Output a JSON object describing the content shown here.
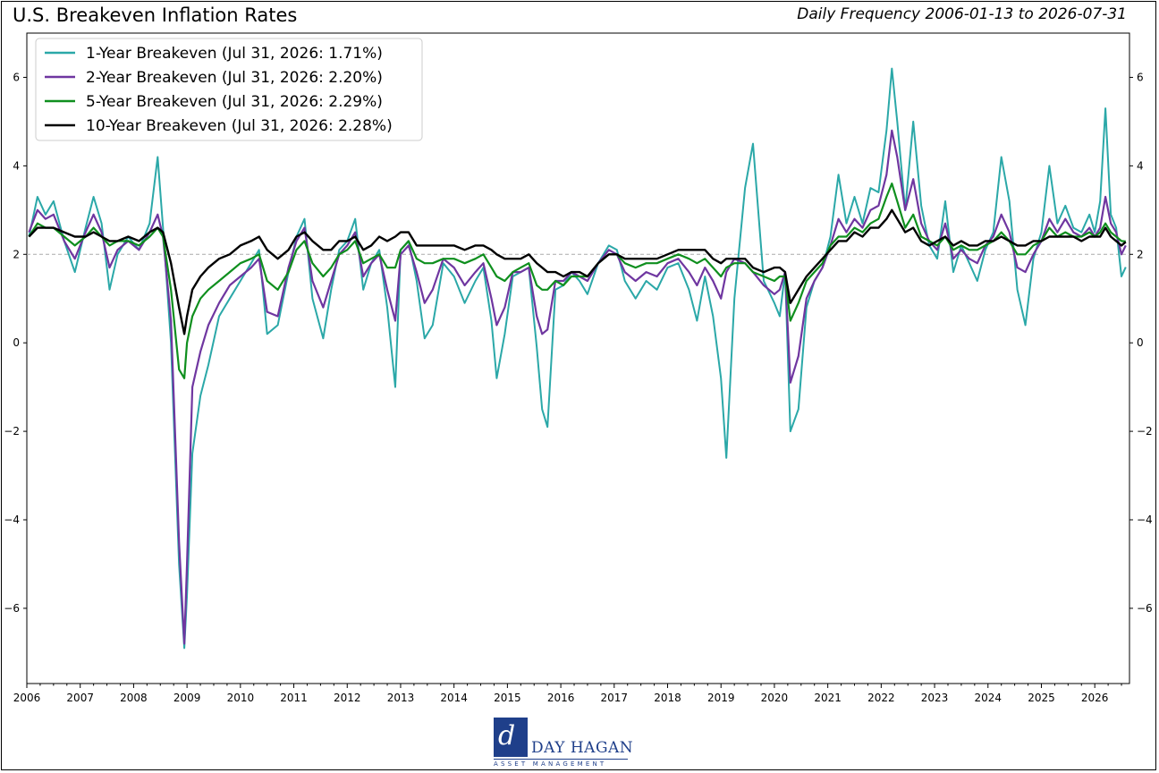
{
  "header": {
    "title": "U.S. Breakeven Inflation Rates",
    "subtitle": "Daily Frequency 2006-01-13 to 2026-07-31"
  },
  "logo": {
    "mark": "d",
    "name": "DAY HAGAN",
    "tagline": "ASSET MANAGEMENT"
  },
  "chart_data": {
    "type": "line",
    "title": "U.S. Breakeven Inflation Rates",
    "xlabel": "",
    "ylabel": "",
    "xlim": [
      2006.0,
      2026.65
    ],
    "ylim": [
      -7.7,
      7.0
    ],
    "x_ticks": [
      "2006",
      "2007",
      "2008",
      "2009",
      "2010",
      "2011",
      "2012",
      "2013",
      "2014",
      "2015",
      "2016",
      "2017",
      "2018",
      "2019",
      "2020",
      "2021",
      "2022",
      "2023",
      "2024",
      "2025",
      "2026"
    ],
    "y_ticks": [
      6,
      4,
      2,
      0,
      -2,
      -4,
      -6
    ],
    "reference_line": 2,
    "grid": false,
    "legend_position": "top-left",
    "series": [
      {
        "name": "1-Year Breakeven (Jul 31, 2026: 1.71%)",
        "color": "#2ba8a8",
        "x": [
          2006.04,
          2006.2,
          2006.35,
          2006.5,
          2006.7,
          2006.9,
          2007.1,
          2007.25,
          2007.4,
          2007.55,
          2007.7,
          2007.9,
          2008.1,
          2008.3,
          2008.45,
          2008.55,
          2008.7,
          2008.85,
          2008.95,
          2009.0,
          2009.1,
          2009.25,
          2009.4,
          2009.6,
          2009.8,
          2010.0,
          2010.2,
          2010.35,
          2010.5,
          2010.7,
          2010.9,
          2011.05,
          2011.2,
          2011.35,
          2011.55,
          2011.7,
          2011.85,
          2012.0,
          2012.15,
          2012.3,
          2012.45,
          2012.6,
          2012.75,
          2012.9,
          2013.0,
          2013.15,
          2013.3,
          2013.45,
          2013.6,
          2013.8,
          2014.0,
          2014.2,
          2014.4,
          2014.55,
          2014.7,
          2014.8,
          2014.95,
          2015.1,
          2015.25,
          2015.4,
          2015.55,
          2015.65,
          2015.75,
          2015.9,
          2016.05,
          2016.2,
          2016.35,
          2016.5,
          2016.7,
          2016.9,
          2017.05,
          2017.2,
          2017.4,
          2017.6,
          2017.8,
          2018.0,
          2018.2,
          2018.4,
          2018.55,
          2018.7,
          2018.85,
          2019.0,
          2019.1,
          2019.25,
          2019.45,
          2019.6,
          2019.8,
          2020.0,
          2020.1,
          2020.2,
          2020.3,
          2020.45,
          2020.6,
          2020.75,
          2020.9,
          2021.05,
          2021.2,
          2021.35,
          2021.5,
          2021.65,
          2021.8,
          2021.95,
          2022.1,
          2022.2,
          2022.3,
          2022.45,
          2022.6,
          2022.75,
          2022.9,
          2023.05,
          2023.2,
          2023.35,
          2023.5,
          2023.65,
          2023.8,
          2023.95,
          2024.1,
          2024.25,
          2024.4,
          2024.55,
          2024.7,
          2024.85,
          2025.0,
          2025.15,
          2025.3,
          2025.45,
          2025.6,
          2025.75,
          2025.9,
          2026.0,
          2026.1,
          2026.2,
          2026.3,
          2026.4,
          2026.5,
          2026.58
        ],
        "y": [
          2.4,
          3.3,
          2.9,
          3.2,
          2.3,
          1.6,
          2.6,
          3.3,
          2.7,
          1.2,
          2.0,
          2.4,
          2.1,
          2.7,
          4.2,
          2.6,
          0.0,
          -5.0,
          -6.9,
          -5.7,
          -2.5,
          -1.2,
          -0.5,
          0.6,
          1.0,
          1.4,
          1.8,
          2.1,
          0.2,
          0.4,
          1.6,
          2.4,
          2.8,
          1.0,
          0.1,
          1.2,
          2.1,
          2.3,
          2.8,
          1.2,
          1.8,
          2.1,
          0.8,
          -1.0,
          2.1,
          2.3,
          1.4,
          0.1,
          0.4,
          1.8,
          1.5,
          0.9,
          1.4,
          1.7,
          0.5,
          -0.8,
          0.2,
          1.5,
          1.6,
          1.7,
          -0.1,
          -1.5,
          -1.9,
          1.2,
          1.3,
          1.6,
          1.4,
          1.1,
          1.8,
          2.2,
          2.1,
          1.4,
          1.0,
          1.4,
          1.2,
          1.7,
          1.8,
          1.2,
          0.5,
          1.5,
          0.6,
          -0.8,
          -2.6,
          1.0,
          3.5,
          4.5,
          1.4,
          0.9,
          0.6,
          1.6,
          -2.0,
          -1.5,
          0.8,
          1.4,
          1.7,
          2.4,
          3.8,
          2.7,
          3.3,
          2.7,
          3.5,
          3.4,
          4.8,
          6.2,
          5.0,
          3.0,
          5.0,
          3.1,
          2.2,
          1.9,
          3.2,
          1.6,
          2.2,
          1.8,
          1.4,
          2.1,
          2.5,
          4.2,
          3.2,
          1.2,
          0.4,
          1.9,
          2.5,
          4.0,
          2.7,
          3.1,
          2.6,
          2.5,
          2.9,
          2.5,
          3.2,
          5.3,
          2.9,
          2.6,
          1.5,
          1.71
        ]
      },
      {
        "name": "2-Year Breakeven (Jul 31, 2026: 2.20%)",
        "color": "#6f36a0",
        "x": [
          2006.04,
          2006.2,
          2006.35,
          2006.5,
          2006.7,
          2006.9,
          2007.1,
          2007.25,
          2007.4,
          2007.55,
          2007.7,
          2007.9,
          2008.1,
          2008.3,
          2008.45,
          2008.55,
          2008.7,
          2008.85,
          2008.95,
          2009.0,
          2009.1,
          2009.25,
          2009.4,
          2009.6,
          2009.8,
          2010.0,
          2010.2,
          2010.35,
          2010.5,
          2010.7,
          2010.9,
          2011.05,
          2011.2,
          2011.35,
          2011.55,
          2011.7,
          2011.85,
          2012.0,
          2012.15,
          2012.3,
          2012.45,
          2012.6,
          2012.75,
          2012.9,
          2013.0,
          2013.15,
          2013.3,
          2013.45,
          2013.6,
          2013.8,
          2014.0,
          2014.2,
          2014.4,
          2014.55,
          2014.7,
          2014.8,
          2014.95,
          2015.1,
          2015.25,
          2015.4,
          2015.55,
          2015.65,
          2015.75,
          2015.9,
          2016.05,
          2016.2,
          2016.35,
          2016.5,
          2016.7,
          2016.9,
          2017.05,
          2017.2,
          2017.4,
          2017.6,
          2017.8,
          2018.0,
          2018.2,
          2018.4,
          2018.55,
          2018.7,
          2018.85,
          2019.0,
          2019.1,
          2019.25,
          2019.45,
          2019.6,
          2019.8,
          2020.0,
          2020.1,
          2020.2,
          2020.3,
          2020.45,
          2020.6,
          2020.75,
          2020.9,
          2021.05,
          2021.2,
          2021.35,
          2021.5,
          2021.65,
          2021.8,
          2021.95,
          2022.1,
          2022.2,
          2022.3,
          2022.45,
          2022.6,
          2022.75,
          2022.9,
          2023.05,
          2023.2,
          2023.35,
          2023.5,
          2023.65,
          2023.8,
          2023.95,
          2024.1,
          2024.25,
          2024.4,
          2024.55,
          2024.7,
          2024.85,
          2025.0,
          2025.15,
          2025.3,
          2025.45,
          2025.6,
          2025.75,
          2025.9,
          2026.0,
          2026.1,
          2026.2,
          2026.3,
          2026.4,
          2026.5,
          2026.58
        ],
        "y": [
          2.5,
          3.0,
          2.8,
          2.9,
          2.3,
          1.9,
          2.5,
          2.9,
          2.5,
          1.7,
          2.1,
          2.3,
          2.1,
          2.5,
          2.9,
          2.4,
          0.5,
          -4.5,
          -6.8,
          -5.0,
          -1.0,
          -0.2,
          0.4,
          0.9,
          1.3,
          1.5,
          1.7,
          1.9,
          0.7,
          0.6,
          1.7,
          2.3,
          2.6,
          1.4,
          0.8,
          1.4,
          2.0,
          2.2,
          2.5,
          1.5,
          1.8,
          2.0,
          1.2,
          0.5,
          2.0,
          2.2,
          1.6,
          0.9,
          1.2,
          1.9,
          1.7,
          1.3,
          1.6,
          1.8,
          1.0,
          0.4,
          0.8,
          1.6,
          1.6,
          1.7,
          0.6,
          0.2,
          0.3,
          1.4,
          1.4,
          1.6,
          1.5,
          1.4,
          1.8,
          2.1,
          2.0,
          1.6,
          1.4,
          1.6,
          1.5,
          1.8,
          1.9,
          1.6,
          1.3,
          1.7,
          1.4,
          1.0,
          1.6,
          1.9,
          1.8,
          1.6,
          1.3,
          1.1,
          1.2,
          1.6,
          -0.9,
          -0.3,
          1.0,
          1.4,
          1.7,
          2.2,
          2.8,
          2.5,
          2.8,
          2.6,
          3.0,
          3.1,
          3.8,
          4.8,
          4.2,
          3.0,
          3.7,
          2.7,
          2.3,
          2.1,
          2.7,
          1.9,
          2.1,
          1.9,
          1.8,
          2.2,
          2.4,
          2.9,
          2.5,
          1.7,
          1.6,
          2.0,
          2.3,
          2.8,
          2.5,
          2.8,
          2.5,
          2.4,
          2.6,
          2.4,
          2.6,
          3.3,
          2.7,
          2.5,
          2.0,
          2.2
        ]
      },
      {
        "name": "5-Year Breakeven (Jul 31, 2026: 2.29%)",
        "color": "#0f8f1e",
        "x": [
          2006.04,
          2006.2,
          2006.35,
          2006.5,
          2006.7,
          2006.9,
          2007.1,
          2007.25,
          2007.4,
          2007.55,
          2007.7,
          2007.9,
          2008.1,
          2008.3,
          2008.45,
          2008.55,
          2008.7,
          2008.85,
          2008.95,
          2009.0,
          2009.1,
          2009.25,
          2009.4,
          2009.6,
          2009.8,
          2010.0,
          2010.2,
          2010.35,
          2010.5,
          2010.7,
          2010.9,
          2011.05,
          2011.2,
          2011.35,
          2011.55,
          2011.7,
          2011.85,
          2012.0,
          2012.15,
          2012.3,
          2012.45,
          2012.6,
          2012.75,
          2012.9,
          2013.0,
          2013.15,
          2013.3,
          2013.45,
          2013.6,
          2013.8,
          2014.0,
          2014.2,
          2014.4,
          2014.55,
          2014.7,
          2014.8,
          2014.95,
          2015.1,
          2015.25,
          2015.4,
          2015.55,
          2015.65,
          2015.75,
          2015.9,
          2016.05,
          2016.2,
          2016.35,
          2016.5,
          2016.7,
          2016.9,
          2017.05,
          2017.2,
          2017.4,
          2017.6,
          2017.8,
          2018.0,
          2018.2,
          2018.4,
          2018.55,
          2018.7,
          2018.85,
          2019.0,
          2019.1,
          2019.25,
          2019.45,
          2019.6,
          2019.8,
          2020.0,
          2020.1,
          2020.2,
          2020.3,
          2020.45,
          2020.6,
          2020.75,
          2020.9,
          2021.05,
          2021.2,
          2021.35,
          2021.5,
          2021.65,
          2021.8,
          2021.95,
          2022.1,
          2022.2,
          2022.3,
          2022.45,
          2022.6,
          2022.75,
          2022.9,
          2023.05,
          2023.2,
          2023.35,
          2023.5,
          2023.65,
          2023.8,
          2023.95,
          2024.1,
          2024.25,
          2024.4,
          2024.55,
          2024.7,
          2024.85,
          2025.0,
          2025.15,
          2025.3,
          2025.45,
          2025.6,
          2025.75,
          2025.9,
          2026.0,
          2026.1,
          2026.2,
          2026.3,
          2026.4,
          2026.5,
          2026.58
        ],
        "y": [
          2.4,
          2.7,
          2.6,
          2.6,
          2.4,
          2.2,
          2.4,
          2.6,
          2.4,
          2.2,
          2.3,
          2.3,
          2.2,
          2.4,
          2.6,
          2.4,
          1.2,
          -0.6,
          -0.8,
          0.0,
          0.6,
          1.0,
          1.2,
          1.4,
          1.6,
          1.8,
          1.9,
          2.0,
          1.4,
          1.2,
          1.6,
          2.1,
          2.3,
          1.8,
          1.5,
          1.7,
          2.0,
          2.1,
          2.3,
          1.8,
          1.9,
          2.0,
          1.7,
          1.7,
          2.1,
          2.3,
          1.9,
          1.8,
          1.8,
          1.9,
          1.9,
          1.8,
          1.9,
          2.0,
          1.7,
          1.5,
          1.4,
          1.6,
          1.7,
          1.8,
          1.3,
          1.2,
          1.2,
          1.4,
          1.3,
          1.5,
          1.5,
          1.5,
          1.8,
          2.0,
          2.0,
          1.8,
          1.7,
          1.8,
          1.8,
          1.9,
          2.0,
          1.9,
          1.8,
          1.9,
          1.7,
          1.5,
          1.7,
          1.8,
          1.8,
          1.6,
          1.5,
          1.4,
          1.5,
          1.5,
          0.5,
          0.9,
          1.4,
          1.6,
          1.8,
          2.2,
          2.4,
          2.4,
          2.6,
          2.5,
          2.7,
          2.8,
          3.3,
          3.6,
          3.2,
          2.6,
          2.9,
          2.4,
          2.3,
          2.2,
          2.4,
          2.1,
          2.2,
          2.1,
          2.1,
          2.2,
          2.3,
          2.5,
          2.3,
          2.0,
          2.0,
          2.2,
          2.3,
          2.6,
          2.4,
          2.5,
          2.4,
          2.4,
          2.5,
          2.4,
          2.5,
          2.7,
          2.5,
          2.4,
          2.3,
          2.29
        ]
      },
      {
        "name": "10-Year Breakeven (Jul 31, 2026: 2.28%)",
        "color": "#000000",
        "x": [
          2006.04,
          2006.2,
          2006.35,
          2006.5,
          2006.7,
          2006.9,
          2007.1,
          2007.25,
          2007.4,
          2007.55,
          2007.7,
          2007.9,
          2008.1,
          2008.3,
          2008.45,
          2008.55,
          2008.7,
          2008.85,
          2008.95,
          2009.0,
          2009.1,
          2009.25,
          2009.4,
          2009.6,
          2009.8,
          2010.0,
          2010.2,
          2010.35,
          2010.5,
          2010.7,
          2010.9,
          2011.05,
          2011.2,
          2011.35,
          2011.55,
          2011.7,
          2011.85,
          2012.0,
          2012.15,
          2012.3,
          2012.45,
          2012.6,
          2012.75,
          2012.9,
          2013.0,
          2013.15,
          2013.3,
          2013.45,
          2013.6,
          2013.8,
          2014.0,
          2014.2,
          2014.4,
          2014.55,
          2014.7,
          2014.8,
          2014.95,
          2015.1,
          2015.25,
          2015.4,
          2015.55,
          2015.65,
          2015.75,
          2015.9,
          2016.05,
          2016.2,
          2016.35,
          2016.5,
          2016.7,
          2016.9,
          2017.05,
          2017.2,
          2017.4,
          2017.6,
          2017.8,
          2018.0,
          2018.2,
          2018.4,
          2018.55,
          2018.7,
          2018.85,
          2019.0,
          2019.1,
          2019.25,
          2019.45,
          2019.6,
          2019.8,
          2020.0,
          2020.1,
          2020.2,
          2020.3,
          2020.45,
          2020.6,
          2020.75,
          2020.9,
          2021.05,
          2021.2,
          2021.35,
          2021.5,
          2021.65,
          2021.8,
          2021.95,
          2022.1,
          2022.2,
          2022.3,
          2022.45,
          2022.6,
          2022.75,
          2022.9,
          2023.05,
          2023.2,
          2023.35,
          2023.5,
          2023.65,
          2023.8,
          2023.95,
          2024.1,
          2024.25,
          2024.4,
          2024.55,
          2024.7,
          2024.85,
          2025.0,
          2025.15,
          2025.3,
          2025.45,
          2025.6,
          2025.75,
          2025.9,
          2026.0,
          2026.1,
          2026.2,
          2026.3,
          2026.4,
          2026.5,
          2026.58
        ],
        "y": [
          2.4,
          2.6,
          2.6,
          2.6,
          2.5,
          2.4,
          2.4,
          2.5,
          2.4,
          2.3,
          2.3,
          2.4,
          2.3,
          2.5,
          2.6,
          2.5,
          1.8,
          0.8,
          0.2,
          0.6,
          1.2,
          1.5,
          1.7,
          1.9,
          2.0,
          2.2,
          2.3,
          2.4,
          2.1,
          1.9,
          2.1,
          2.4,
          2.5,
          2.3,
          2.1,
          2.1,
          2.3,
          2.3,
          2.4,
          2.1,
          2.2,
          2.4,
          2.3,
          2.4,
          2.5,
          2.5,
          2.2,
          2.2,
          2.2,
          2.2,
          2.2,
          2.1,
          2.2,
          2.2,
          2.1,
          2.0,
          1.9,
          1.9,
          1.9,
          2.0,
          1.8,
          1.7,
          1.6,
          1.6,
          1.5,
          1.6,
          1.6,
          1.5,
          1.8,
          2.0,
          2.0,
          1.9,
          1.9,
          1.9,
          1.9,
          2.0,
          2.1,
          2.1,
          2.1,
          2.1,
          1.9,
          1.8,
          1.9,
          1.9,
          1.9,
          1.7,
          1.6,
          1.7,
          1.7,
          1.6,
          0.9,
          1.2,
          1.5,
          1.7,
          1.9,
          2.1,
          2.3,
          2.3,
          2.5,
          2.4,
          2.6,
          2.6,
          2.8,
          3.0,
          2.8,
          2.5,
          2.6,
          2.3,
          2.2,
          2.3,
          2.4,
          2.2,
          2.3,
          2.2,
          2.2,
          2.3,
          2.3,
          2.4,
          2.3,
          2.2,
          2.2,
          2.3,
          2.3,
          2.4,
          2.4,
          2.4,
          2.4,
          2.3,
          2.4,
          2.4,
          2.4,
          2.6,
          2.4,
          2.3,
          2.2,
          2.28
        ]
      }
    ]
  }
}
